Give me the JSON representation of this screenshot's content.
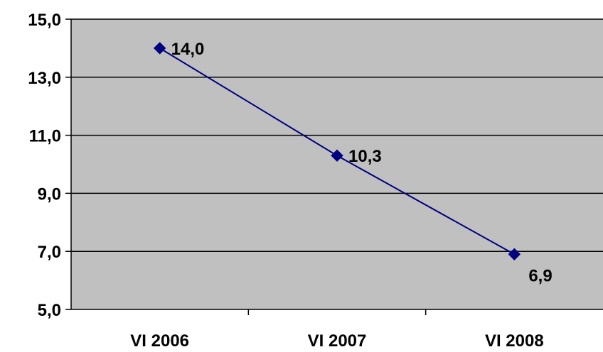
{
  "chart_data": {
    "type": "line",
    "categories": [
      "VI 2006",
      "VI 2007",
      "VI 2008"
    ],
    "series": [
      {
        "values": [
          14.0,
          10.3,
          6.9
        ],
        "color": "#000080",
        "marker": "diamond"
      }
    ],
    "data_labels": [
      "14,0",
      "10,3",
      "6,9"
    ],
    "y_ticks": [
      "5,0",
      "7,0",
      "9,0",
      "11,0",
      "13,0",
      "15,0"
    ],
    "ylim": [
      5,
      15
    ],
    "y_major_step": 2,
    "grid": true,
    "plot_background": "#c0c0c0",
    "title": "",
    "xlabel": "",
    "ylabel": ""
  }
}
